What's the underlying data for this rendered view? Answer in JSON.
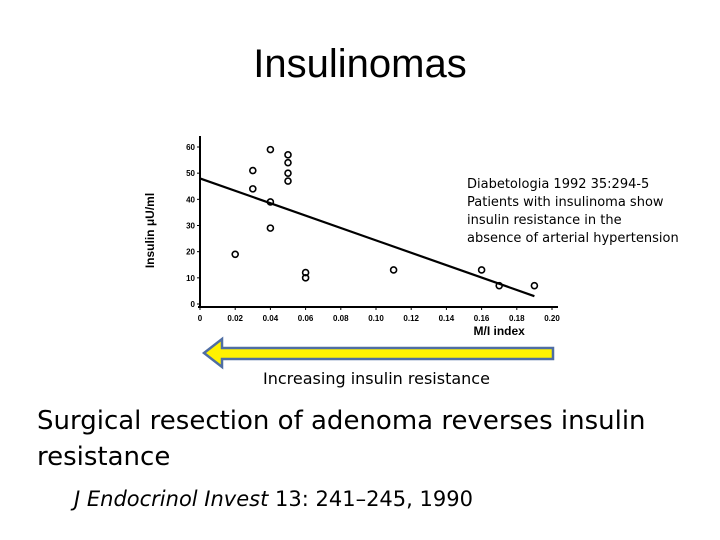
{
  "slide": {
    "title": "Insulinomas",
    "note_lines": [
      "Diabetologia 1992 35:294-5",
      "Patients with insulinoma show",
      "insulin resistance in the",
      "absence of arterial hypertension"
    ],
    "arrow_caption": "Increasing insulin resistance",
    "statement": "Surgical resection of adenoma reverses insulin resistance",
    "reference_journal": "J Endocrinol Invest",
    "reference_rest": " 13: 241–245, 1990"
  },
  "colors": {
    "arrow_fill": "#fff200",
    "arrow_stroke": "#4f6ea3",
    "ink": "#000000"
  },
  "chart_data": {
    "type": "scatter",
    "xlabel": "M/I index",
    "ylabel": "Insulin μU/ml",
    "xlim": [
      0,
      0.2
    ],
    "ylim": [
      0,
      60
    ],
    "xticks": [
      "0",
      "0.02",
      "0.04",
      "0.06",
      "0.08",
      "0.10",
      "0.12",
      "0.14",
      "0.16",
      "0.18",
      "0.20"
    ],
    "yticks": [
      "0",
      "10",
      "20",
      "30",
      "40",
      "50",
      "60"
    ],
    "grid": false,
    "points": [
      {
        "x": 0.02,
        "y": 19
      },
      {
        "x": 0.03,
        "y": 51
      },
      {
        "x": 0.03,
        "y": 44
      },
      {
        "x": 0.04,
        "y": 59
      },
      {
        "x": 0.04,
        "y": 39
      },
      {
        "x": 0.04,
        "y": 29
      },
      {
        "x": 0.05,
        "y": 57
      },
      {
        "x": 0.05,
        "y": 54
      },
      {
        "x": 0.05,
        "y": 50
      },
      {
        "x": 0.05,
        "y": 47
      },
      {
        "x": 0.06,
        "y": 12
      },
      {
        "x": 0.06,
        "y": 10
      },
      {
        "x": 0.11,
        "y": 13
      },
      {
        "x": 0.16,
        "y": 13
      },
      {
        "x": 0.17,
        "y": 7
      },
      {
        "x": 0.19,
        "y": 7
      }
    ],
    "trendline": {
      "x": [
        0,
        0.19
      ],
      "y": [
        48,
        3
      ]
    }
  }
}
